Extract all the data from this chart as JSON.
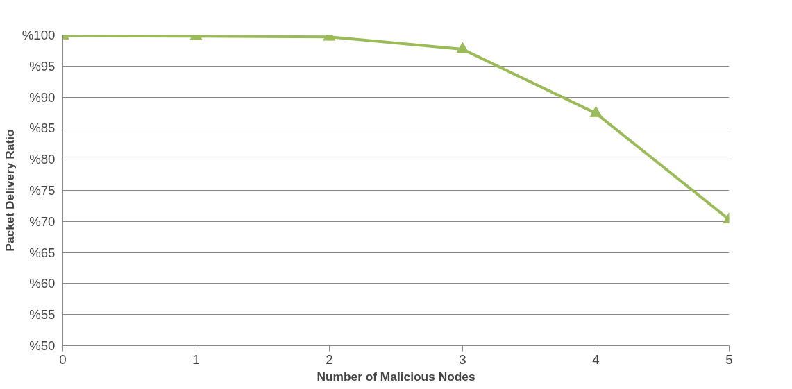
{
  "chart_data": {
    "type": "line",
    "xlabel": "Number of Malicious Nodes",
    "ylabel": "Packet Delivery Ratio",
    "x": [
      0,
      1,
      2,
      3,
      4,
      5
    ],
    "series": [
      {
        "color": "#9bbb59",
        "values": [
          99.9,
          99.8,
          99.7,
          97.7,
          87.4,
          70.3
        ]
      }
    ],
    "xlim": [
      0,
      5
    ],
    "xticks": [
      0,
      1,
      2,
      3,
      4,
      5
    ],
    "ylim": [
      50,
      100
    ],
    "yticks": [
      {
        "value": 50,
        "label": "%50"
      },
      {
        "value": 55,
        "label": "%55"
      },
      {
        "value": 60,
        "label": "%60"
      },
      {
        "value": 65,
        "label": "%65"
      },
      {
        "value": 70,
        "label": "%70"
      },
      {
        "value": 75,
        "label": "%75"
      },
      {
        "value": 80,
        "label": "%80"
      },
      {
        "value": 85,
        "label": "%85"
      },
      {
        "value": 90,
        "label": "%90"
      },
      {
        "value": 95,
        "label": "%95"
      },
      {
        "value": 100,
        "label": "%100"
      }
    ],
    "grid": "y",
    "marker": "triangle",
    "line_style": "solid"
  }
}
